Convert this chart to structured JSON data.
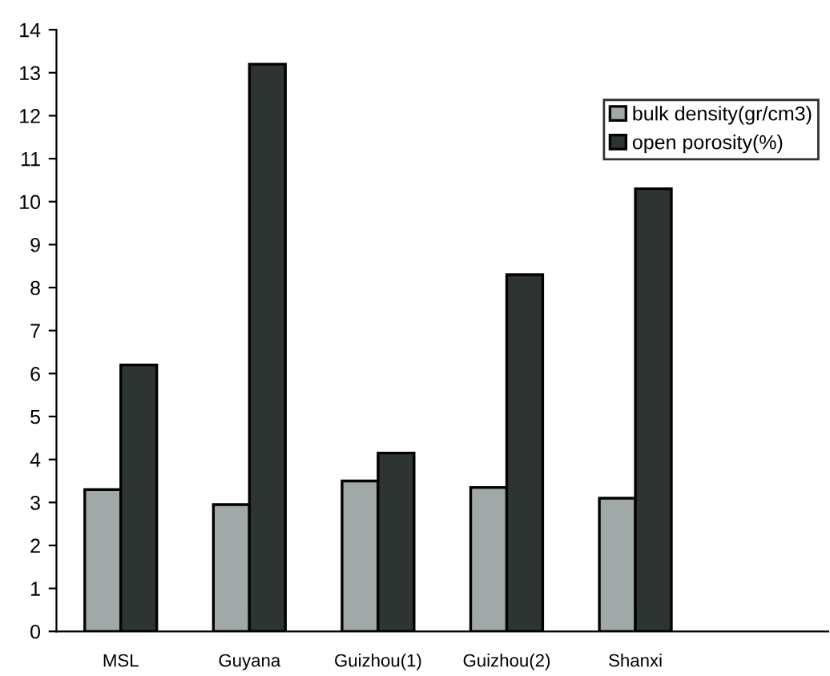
{
  "chart_data": {
    "type": "bar",
    "categories": [
      "MSL",
      "Guyana",
      "Guizhou(1)",
      "Guizhou(2)",
      "Shanxi"
    ],
    "series": [
      {
        "name": "bulk density(gr/cm3)",
        "color": "#a0a8a8",
        "values": [
          3.3,
          2.95,
          3.5,
          3.35,
          3.1
        ]
      },
      {
        "name": "open porosity(%)",
        "color": "#2e3432",
        "values": [
          6.2,
          13.2,
          4.15,
          8.3,
          10.3
        ]
      }
    ],
    "ylim": [
      0,
      14
    ],
    "yticks": [
      0,
      1,
      2,
      3,
      4,
      5,
      6,
      7,
      8,
      9,
      10,
      11,
      12,
      13,
      14
    ],
    "grid": false,
    "legend": "top right"
  }
}
